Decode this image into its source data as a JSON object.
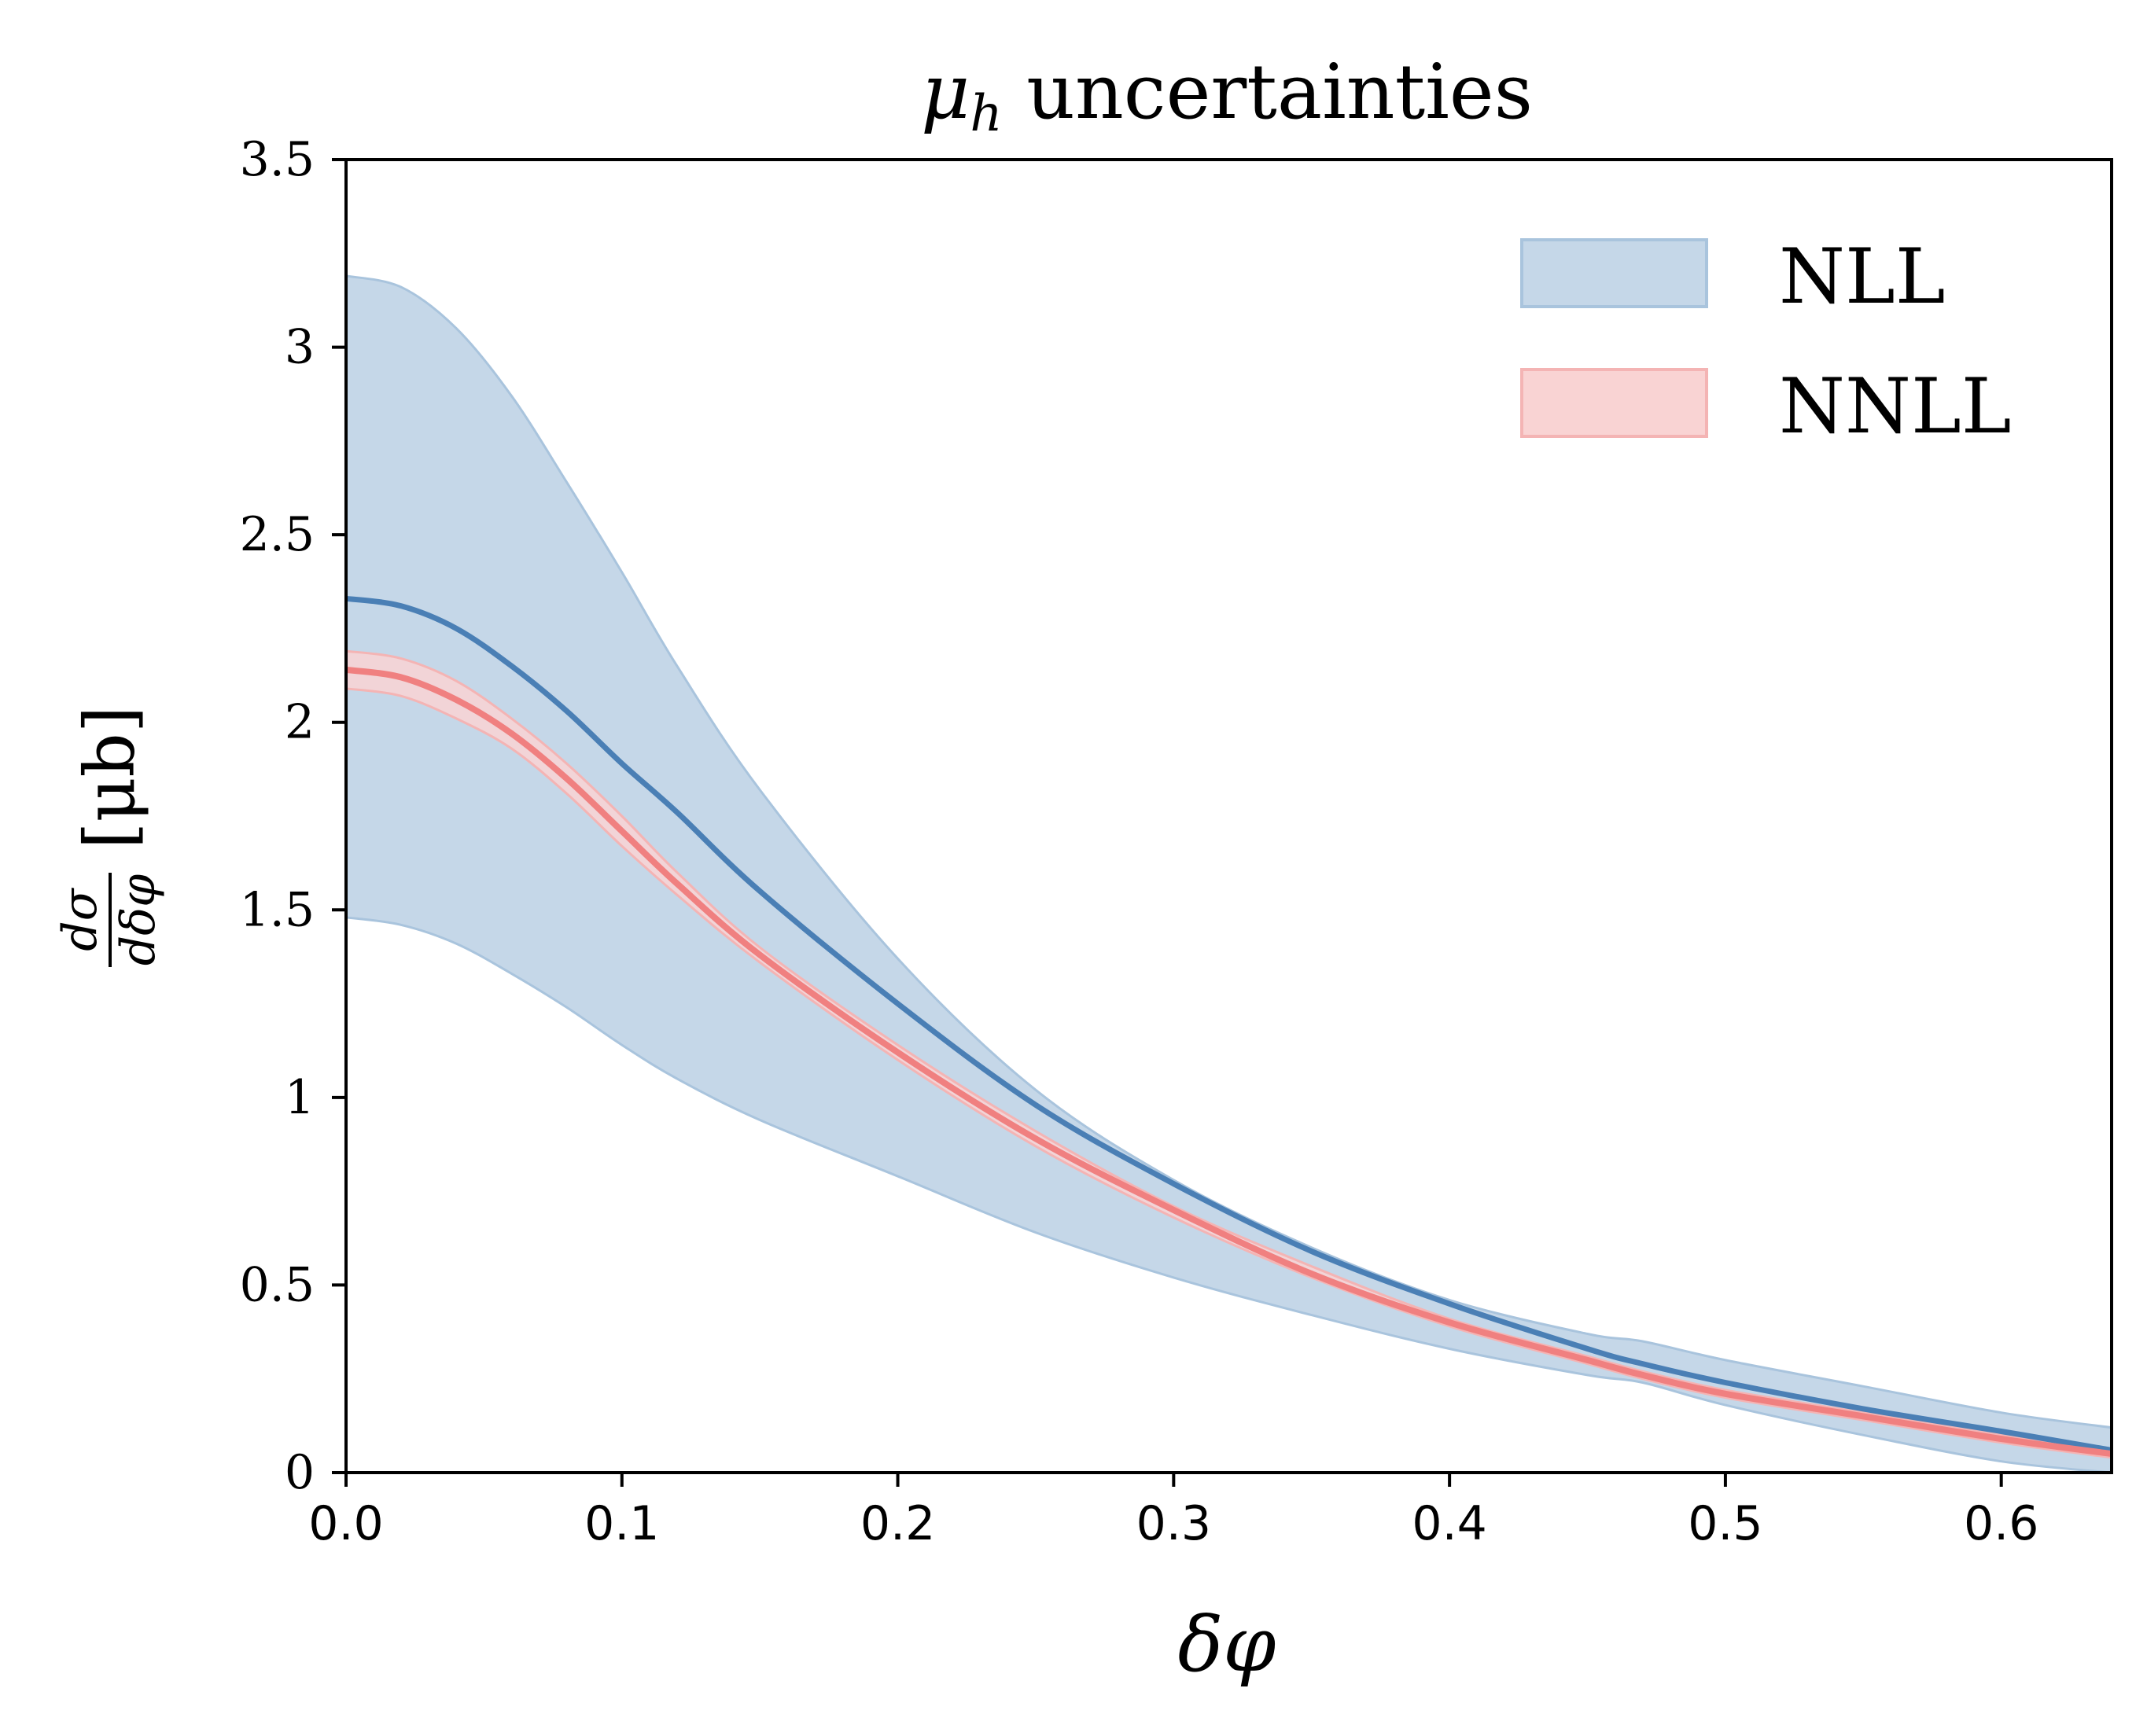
{
  "chart_data": {
    "type": "area",
    "title": {
      "symbol": "μ",
      "sub": "h",
      "text": " uncertainties"
    },
    "xlabel": "δφ",
    "ylabel": {
      "num": "dσ",
      "den": "dδφ",
      "unit": "[μb]"
    },
    "xlim": [
      0,
      0.64
    ],
    "ylim": [
      0,
      3.5
    ],
    "x_ticks": [
      0.0,
      0.1,
      0.2,
      0.3,
      0.4,
      0.5,
      0.6
    ],
    "x_tick_labels": [
      "0.0",
      "0.1",
      "0.2",
      "0.3",
      "0.4",
      "0.5",
      "0.6"
    ],
    "y_ticks": [
      0,
      0.5,
      1,
      1.5,
      2,
      2.5,
      3,
      3.5
    ],
    "y_tick_labels": [
      "0",
      "0.5",
      "1",
      "1.5",
      "2",
      "2.5",
      "3",
      "3.5"
    ],
    "grid": false,
    "legend_position": "top-right",
    "x": [
      0.0,
      0.02,
      0.04,
      0.06,
      0.08,
      0.1,
      0.12,
      0.15,
      0.2,
      0.25,
      0.3,
      0.35,
      0.4,
      0.45,
      0.47,
      0.5,
      0.55,
      0.6,
      0.64
    ],
    "series": [
      {
        "name": "NLL",
        "color": "#4a7fb5",
        "band_color": "#c5d7e8",
        "band_edge_color": "#a9c4dd",
        "central": [
          2.33,
          2.31,
          2.25,
          2.15,
          2.03,
          1.89,
          1.76,
          1.55,
          1.25,
          0.98,
          0.77,
          0.59,
          0.45,
          0.33,
          0.29,
          0.24,
          0.17,
          0.11,
          0.06
        ],
        "upper": [
          3.19,
          3.16,
          3.05,
          2.87,
          2.64,
          2.4,
          2.15,
          1.82,
          1.37,
          1.02,
          0.78,
          0.6,
          0.46,
          0.37,
          0.35,
          0.3,
          0.23,
          0.16,
          0.12
        ],
        "lower": [
          1.48,
          1.46,
          1.41,
          1.33,
          1.24,
          1.14,
          1.05,
          0.94,
          0.79,
          0.64,
          0.52,
          0.42,
          0.33,
          0.26,
          0.24,
          0.18,
          0.1,
          0.03,
          0.0
        ]
      },
      {
        "name": "NNLL",
        "color": "#f08080",
        "band_color": "#f9d3d3",
        "band_edge_color": "#f4b4b4",
        "central": [
          2.14,
          2.12,
          2.06,
          1.97,
          1.85,
          1.71,
          1.57,
          1.38,
          1.12,
          0.89,
          0.7,
          0.53,
          0.4,
          0.3,
          0.26,
          0.21,
          0.15,
          0.09,
          0.05
        ],
        "upper": [
          2.19,
          2.17,
          2.11,
          2.01,
          1.89,
          1.75,
          1.6,
          1.4,
          1.14,
          0.91,
          0.71,
          0.55,
          0.41,
          0.31,
          0.27,
          0.22,
          0.16,
          0.1,
          0.06
        ],
        "lower": [
          2.09,
          2.07,
          2.01,
          1.93,
          1.81,
          1.67,
          1.54,
          1.36,
          1.1,
          0.87,
          0.68,
          0.52,
          0.39,
          0.29,
          0.25,
          0.2,
          0.14,
          0.08,
          0.04
        ]
      }
    ]
  }
}
